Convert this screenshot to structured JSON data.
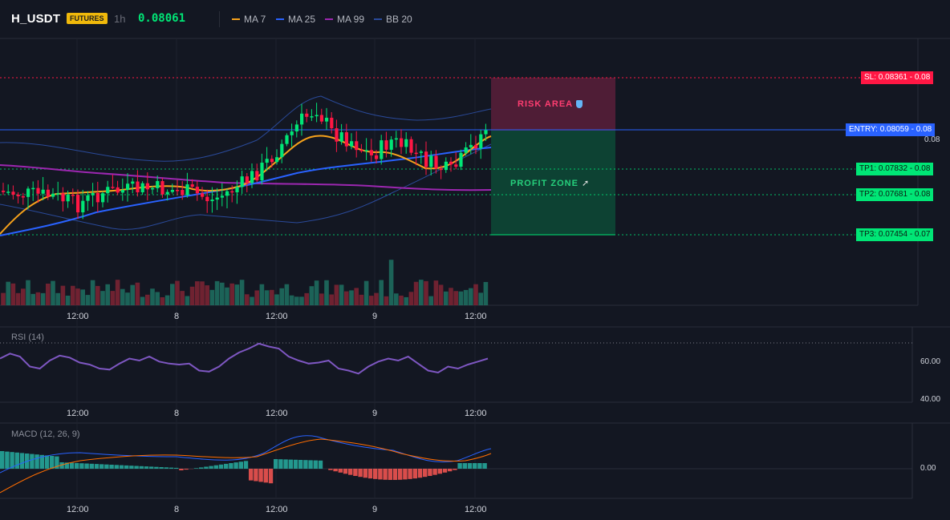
{
  "header": {
    "symbol": "H_USDT",
    "badge": "FUTURES",
    "timeframe": "1h",
    "price": "0.08061",
    "legend": [
      {
        "label": "MA 7",
        "color": "#f7a21b"
      },
      {
        "label": "MA 25",
        "color": "#2962ff"
      },
      {
        "label": "MA 99",
        "color": "#9c27b0"
      },
      {
        "label": "BB 20",
        "color": "#2a4a9a"
      }
    ]
  },
  "levels": {
    "sl": "SL: 0.08361 - 0.08",
    "entry": "ENTRY: 0.08059 - 0.08",
    "tp1": "TP1: 0.07832 - 0.08",
    "tp2": "TP2: 0.07681 - 0.08",
    "tp3": "TP3: 0.07454 - 0.07",
    "price_axis_label": "0.08"
  },
  "zones": {
    "risk": "RISK AREA",
    "profit": "PROFIT ZONE",
    "risk_icon": "shield-icon",
    "profit_icon": "rocket-icon"
  },
  "time_axis": [
    "12:00",
    "8",
    "12:00",
    "9",
    "12:00"
  ],
  "rsi": {
    "title": "RSI (14)",
    "labels": [
      "60.00",
      "40.00"
    ]
  },
  "macd": {
    "title": "MACD (12, 26, 9)",
    "labels": [
      "0.00"
    ]
  },
  "colors": {
    "up": "#26a69a",
    "up_bright": "#00e676",
    "down": "#ff1744",
    "ma7": "#f7a21b",
    "ma25": "#2962ff",
    "ma99": "#9c27b0",
    "bb": "#2a4a9a",
    "rsi": "#7e57c2",
    "macd_line": "#2962ff",
    "signal_line": "#ff6d00"
  }
}
